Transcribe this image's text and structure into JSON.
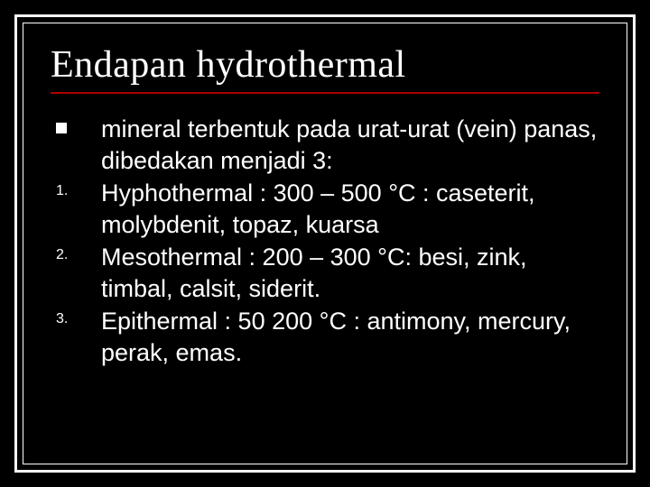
{
  "slide": {
    "title": "Endapan hydrothermal",
    "title_fontsize": 42,
    "body_fontsize": 27,
    "marker_fontsize": 16,
    "colors": {
      "background": "#000000",
      "text": "#ffffff",
      "frame": "#ffffff",
      "underline": "#b00000"
    },
    "items": [
      {
        "marker_type": "square",
        "marker": "",
        "text": " mineral terbentuk pada urat-urat (vein) panas, dibedakan menjadi 3:"
      },
      {
        "marker_type": "number",
        "marker": "1.",
        "text": "Hyphothermal : 300 – 500 °C : caseterit, molybdenit, topaz, kuarsa"
      },
      {
        "marker_type": "number",
        "marker": "2.",
        "text": "Mesothermal : 200 – 300 °C: besi, zink, timbal, calsit, siderit."
      },
      {
        "marker_type": "number",
        "marker": "3.",
        "text": "Epithermal : 50 200 °C : antimony, mercury, perak, emas."
      }
    ]
  }
}
